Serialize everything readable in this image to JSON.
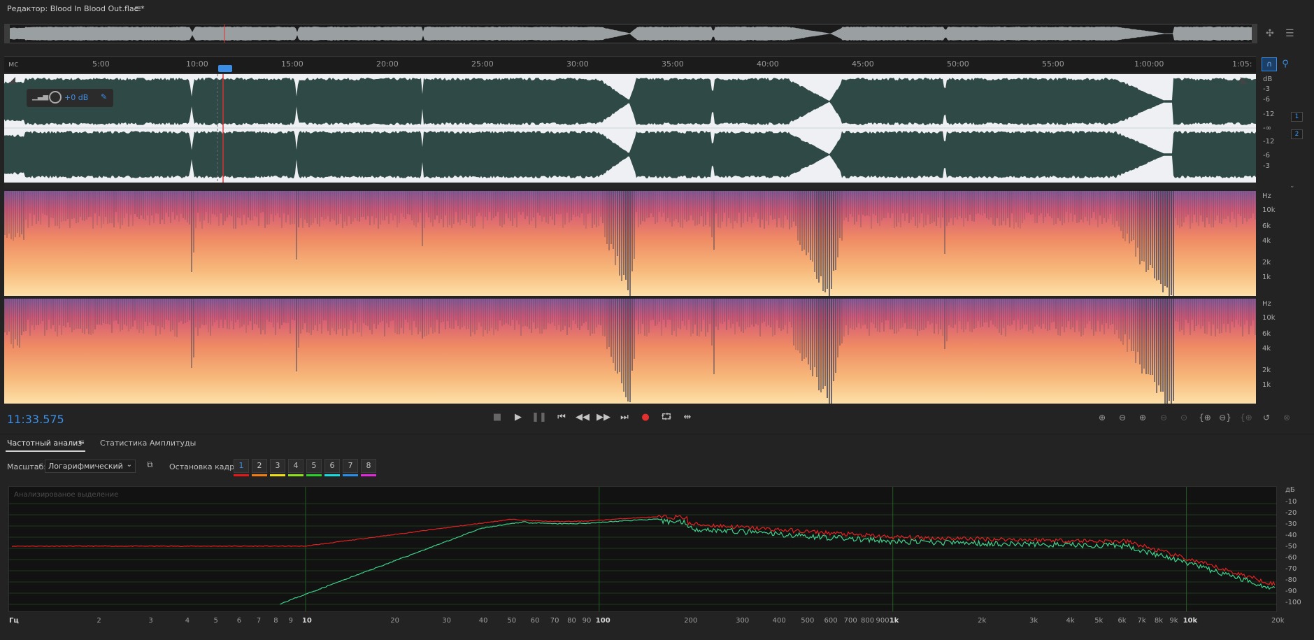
{
  "editor": {
    "title": "Редактор: Blood In Blood Out.flac *"
  },
  "timeline": {
    "unit": "мс",
    "ticks": [
      "5:00",
      "10:00",
      "15:00",
      "20:00",
      "25:00",
      "30:00",
      "35:00",
      "40:00",
      "45:00",
      "50:00",
      "55:00",
      "1:00:00",
      "1:05:"
    ]
  },
  "wave": {
    "db_unit": "dB",
    "db_labels": [
      "-3",
      "-6",
      "-12",
      "-∞",
      "-12",
      "-6",
      "-3"
    ],
    "channels": [
      "1",
      "2"
    ],
    "volume": {
      "value": "+0 dB"
    }
  },
  "spectral": {
    "unit": "Hz",
    "labels": [
      "10k",
      "6k",
      "4k",
      "2k",
      "1k"
    ]
  },
  "transport": {
    "time": "11:33.575"
  },
  "panel": {
    "tabs": [
      "Частотный анализ",
      "Статистика Амплитуды"
    ],
    "scale_label": "Масштаб:",
    "scale_value": "Логарифмический",
    "hold_label": "Остановка кадра:",
    "hold_buttons": [
      "1",
      "2",
      "3",
      "4",
      "5",
      "6",
      "7",
      "8"
    ],
    "hold_colors": [
      "#e0191b",
      "#f07e12",
      "#efe017",
      "#8fe31c",
      "#2ccf2c",
      "#19dbe0",
      "#2a8fe8",
      "#e02bd8"
    ]
  },
  "graph": {
    "label": "Анализированое выделение",
    "y_unit": "дБ",
    "y_labels": [
      "-10",
      "-20",
      "-30",
      "-40",
      "-50",
      "-60",
      "-70",
      "-80",
      "-90",
      "-100"
    ],
    "x_unit": "Гц",
    "x_labels": [
      "2",
      "3",
      "4",
      "5",
      "6",
      "7",
      "8",
      "9",
      "10",
      "20",
      "30",
      "40",
      "50",
      "60",
      "70",
      "80",
      "90",
      "100",
      "200",
      "300",
      "400",
      "500",
      "600",
      "700",
      "800",
      "900",
      "1k",
      "2k",
      "3k",
      "4k",
      "5k",
      "6k",
      "7k",
      "8k",
      "9k",
      "10k",
      "20k"
    ]
  }
}
